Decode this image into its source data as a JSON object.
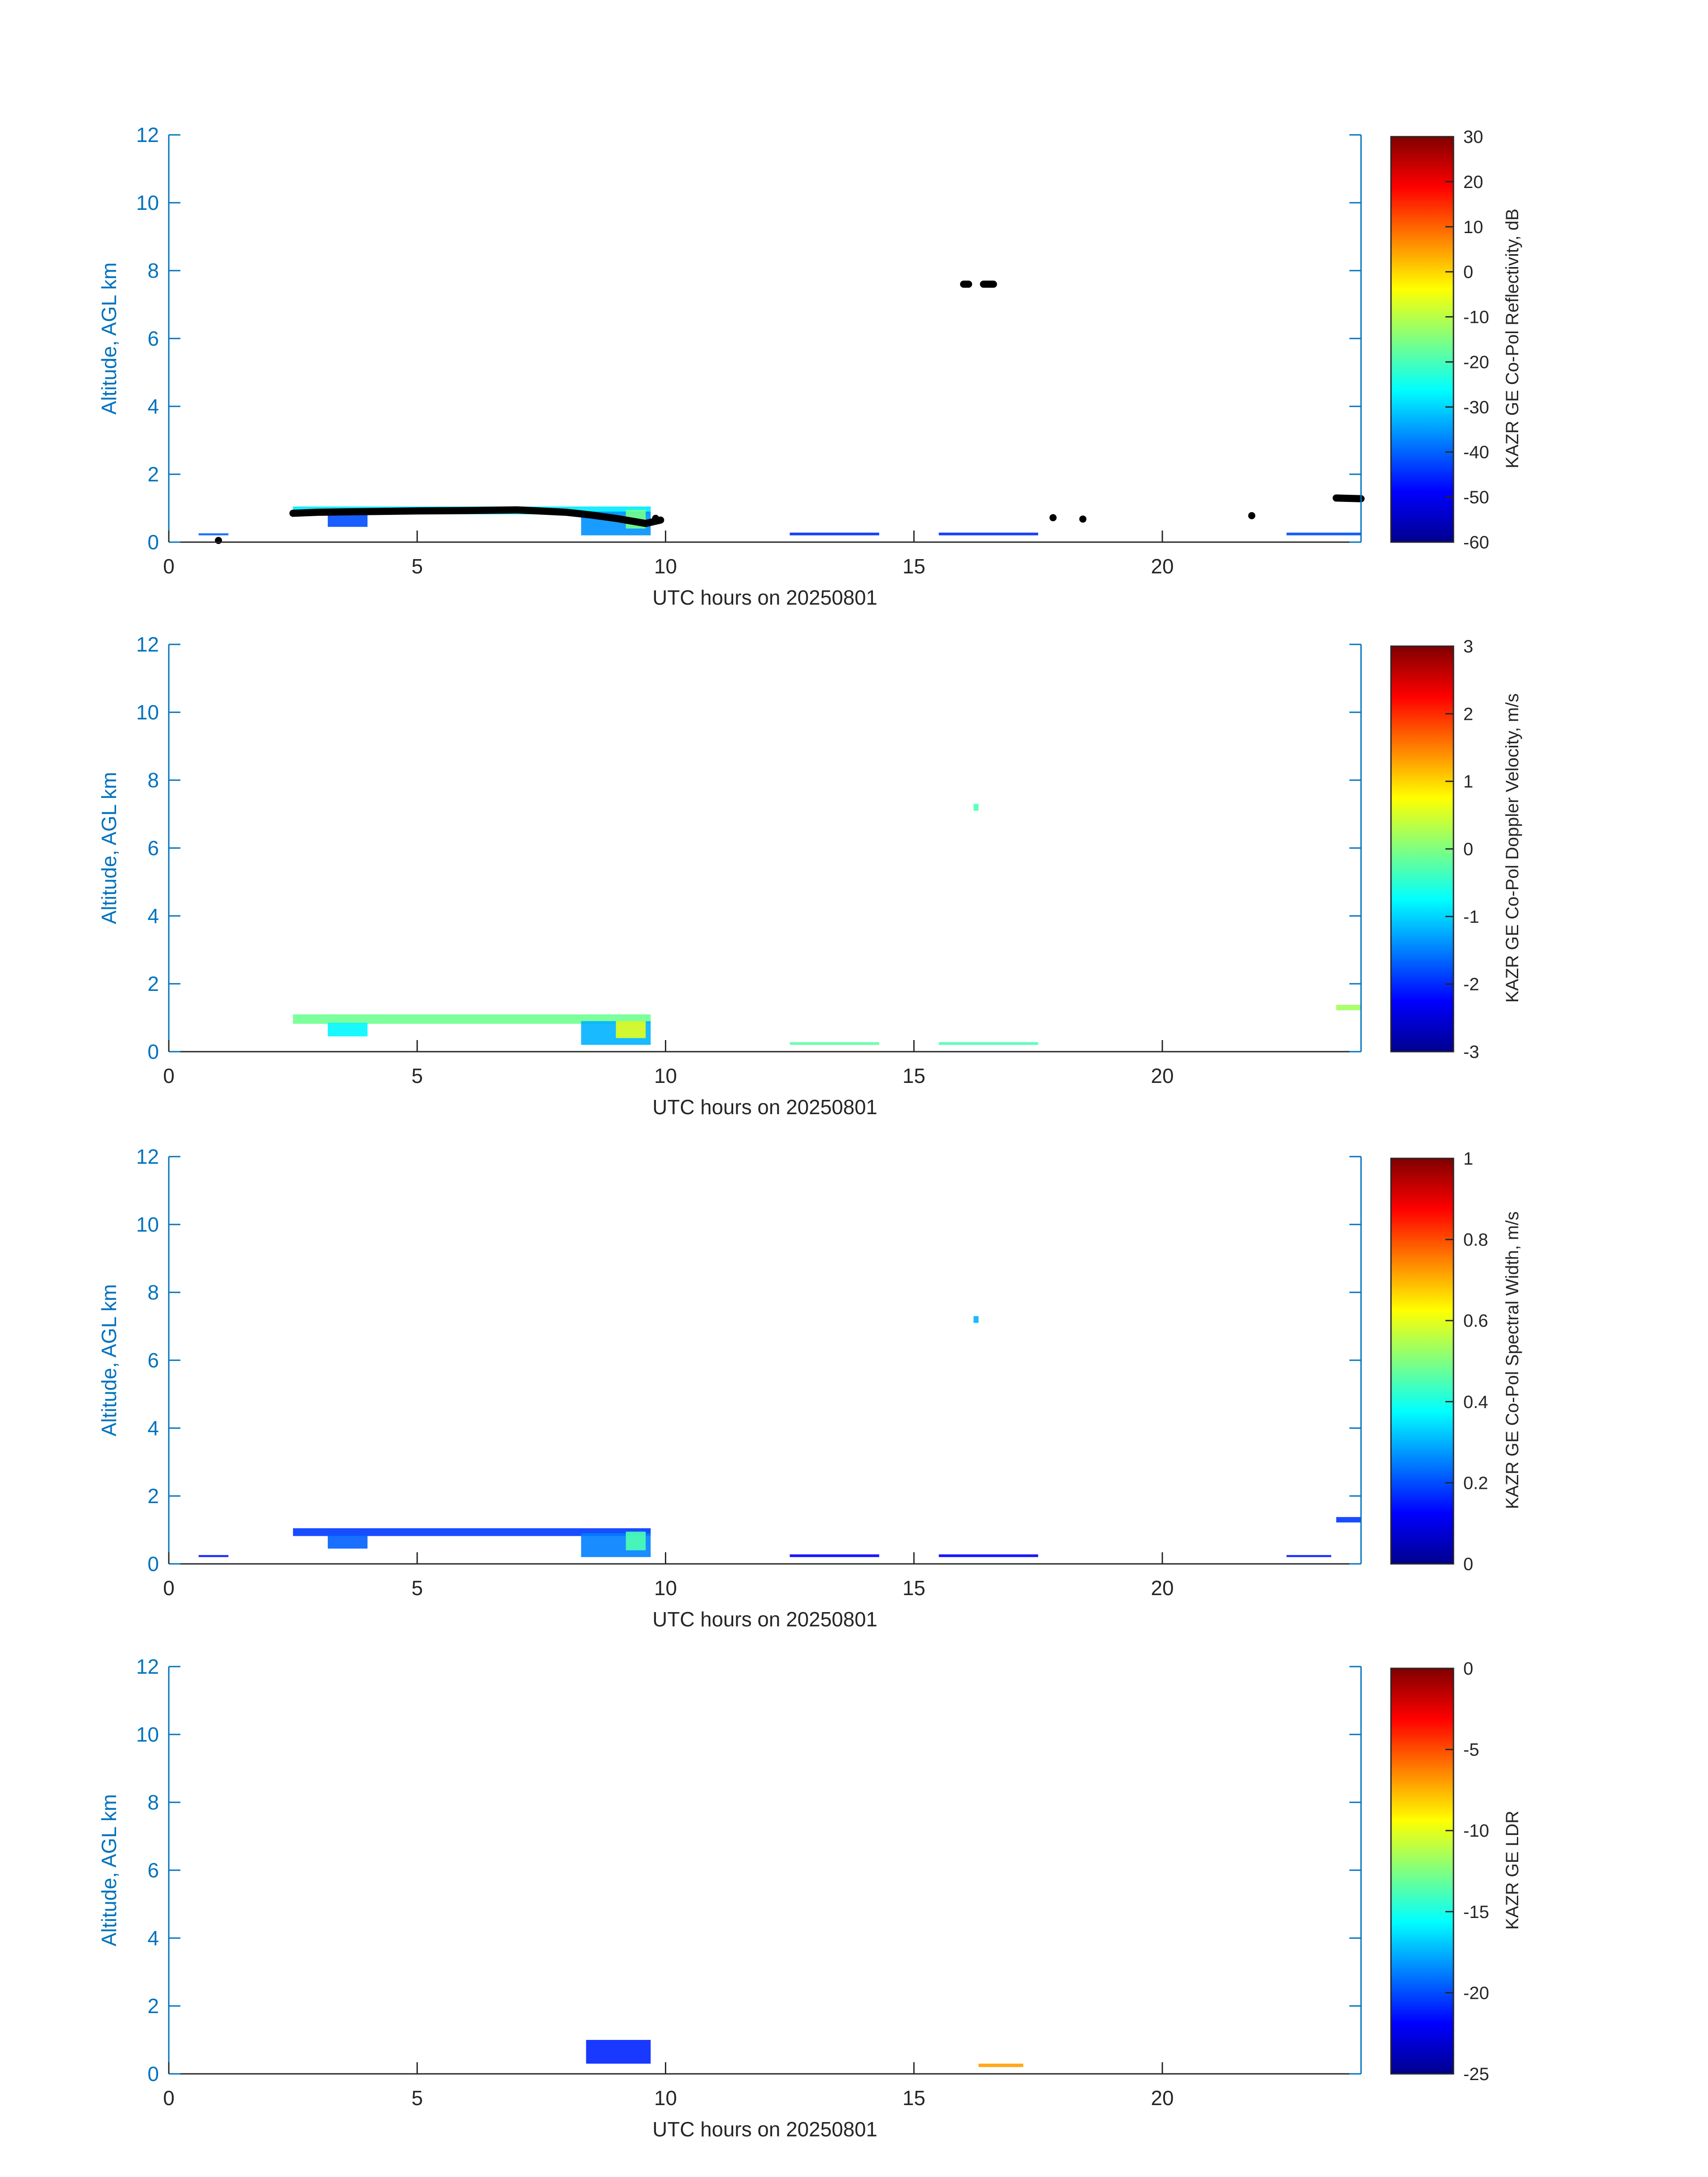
{
  "chart_data": [
    {
      "type": "heatmap",
      "xlabel": "UTC hours on 20250801",
      "ylabel": "Altitude, AGL km",
      "xlim": [
        0,
        24
      ],
      "ylim": [
        0,
        12
      ],
      "xticks": [
        0,
        5,
        10,
        15,
        20
      ],
      "yticks": [
        0,
        2,
        4,
        6,
        8,
        10,
        12
      ],
      "colorbar": {
        "label": "KAZR GE Co-Pol Reflectivity, dB",
        "range": [
          -60,
          30
        ],
        "ticks": [
          30,
          20,
          10,
          0,
          -10,
          -20,
          -30,
          -40,
          -50,
          -60
        ],
        "colormap": "jet"
      },
      "overlay": {
        "name": "cloud base",
        "color": "#000000",
        "segments": [
          [
            [
              2.5,
              0.85
            ],
            [
              3.0,
              0.88
            ],
            [
              4.0,
              0.9
            ],
            [
              5.0,
              0.92
            ],
            [
              6.0,
              0.93
            ],
            [
              7.0,
              0.95
            ],
            [
              8.0,
              0.88
            ],
            [
              8.5,
              0.8
            ],
            [
              9.0,
              0.7
            ],
            [
              9.4,
              0.6
            ],
            [
              9.6,
              0.55
            ],
            [
              9.9,
              0.65
            ]
          ],
          [
            [
              16.0,
              7.6
            ],
            [
              16.1,
              7.6
            ]
          ],
          [
            [
              16.4,
              7.6
            ],
            [
              16.6,
              7.6
            ]
          ],
          [
            [
              23.5,
              1.3
            ],
            [
              24.0,
              1.28
            ]
          ]
        ],
        "points": [
          [
            1.0,
            0.05
          ],
          [
            17.8,
            0.72
          ],
          [
            18.4,
            0.68
          ],
          [
            21.8,
            0.78
          ],
          [
            9.8,
            0.7
          ]
        ]
      },
      "echoes": [
        {
          "x0": 2.5,
          "x1": 9.7,
          "y0": 0.82,
          "y1": 1.05,
          "v": -28
        },
        {
          "x0": 3.2,
          "x1": 4.0,
          "y0": 0.45,
          "y1": 0.85,
          "v": -42
        },
        {
          "x0": 8.3,
          "x1": 9.7,
          "y0": 0.2,
          "y1": 0.9,
          "v": -36
        },
        {
          "x0": 9.2,
          "x1": 9.6,
          "y0": 0.4,
          "y1": 0.95,
          "v": -16
        },
        {
          "x0": 0.6,
          "x1": 1.2,
          "y0": 0.2,
          "y1": 0.26,
          "v": -40
        },
        {
          "x0": 12.5,
          "x1": 14.3,
          "y0": 0.2,
          "y1": 0.28,
          "v": -45
        },
        {
          "x0": 15.5,
          "x1": 17.5,
          "y0": 0.2,
          "y1": 0.28,
          "v": -45
        },
        {
          "x0": 22.5,
          "x1": 24.0,
          "y0": 0.2,
          "y1": 0.28,
          "v": -42
        }
      ]
    },
    {
      "type": "heatmap",
      "xlabel": "UTC hours on 20250801",
      "ylabel": "Altitude, AGL km",
      "xlim": [
        0,
        24
      ],
      "ylim": [
        0,
        12
      ],
      "xticks": [
        0,
        5,
        10,
        15,
        20
      ],
      "yticks": [
        0,
        2,
        4,
        6,
        8,
        10,
        12
      ],
      "colorbar": {
        "label": "KAZR GE Co-Pol Doppler Velocity, m/s",
        "range": [
          -3,
          3
        ],
        "ticks": [
          3,
          2,
          1,
          0,
          -1,
          -2,
          -3
        ],
        "colormap": "jet"
      },
      "echoes": [
        {
          "x0": 2.5,
          "x1": 9.7,
          "y0": 0.82,
          "y1": 1.1,
          "v": -0.1
        },
        {
          "x0": 3.2,
          "x1": 4.0,
          "y0": 0.45,
          "y1": 0.85,
          "v": -0.8
        },
        {
          "x0": 8.3,
          "x1": 9.7,
          "y0": 0.2,
          "y1": 0.9,
          "v": -1.2
        },
        {
          "x0": 9.0,
          "x1": 9.6,
          "y0": 0.4,
          "y1": 0.9,
          "v": 0.6
        },
        {
          "x0": 12.5,
          "x1": 14.3,
          "y0": 0.2,
          "y1": 0.28,
          "v": -0.2
        },
        {
          "x0": 15.5,
          "x1": 17.5,
          "y0": 0.2,
          "y1": 0.28,
          "v": -0.3
        },
        {
          "x0": 23.5,
          "x1": 24.0,
          "y0": 1.22,
          "y1": 1.38,
          "v": 0.2
        },
        {
          "x0": 16.2,
          "x1": 16.3,
          "y0": 7.1,
          "y1": 7.3,
          "v": -0.3
        }
      ]
    },
    {
      "type": "heatmap",
      "xlabel": "UTC hours on 20250801",
      "ylabel": "Altitude, AGL km",
      "xlim": [
        0,
        24
      ],
      "ylim": [
        0,
        12
      ],
      "xticks": [
        0,
        5,
        10,
        15,
        20
      ],
      "yticks": [
        0,
        2,
        4,
        6,
        8,
        10,
        12
      ],
      "colorbar": {
        "label": "KAZR GE Co-Pol Spectral Width, m/s",
        "range": [
          0,
          1
        ],
        "ticks": [
          1,
          0.8,
          0.6,
          0.4,
          0.2,
          0
        ],
        "colormap": "jet"
      },
      "echoes": [
        {
          "x0": 2.5,
          "x1": 9.7,
          "y0": 0.82,
          "y1": 1.05,
          "v": 0.18
        },
        {
          "x0": 3.2,
          "x1": 4.0,
          "y0": 0.45,
          "y1": 0.85,
          "v": 0.22
        },
        {
          "x0": 8.3,
          "x1": 9.7,
          "y0": 0.2,
          "y1": 0.9,
          "v": 0.25
        },
        {
          "x0": 9.2,
          "x1": 9.6,
          "y0": 0.4,
          "y1": 0.95,
          "v": 0.45
        },
        {
          "x0": 0.6,
          "x1": 1.2,
          "y0": 0.2,
          "y1": 0.26,
          "v": 0.15
        },
        {
          "x0": 12.5,
          "x1": 14.3,
          "y0": 0.2,
          "y1": 0.28,
          "v": 0.12
        },
        {
          "x0": 15.5,
          "x1": 17.5,
          "y0": 0.2,
          "y1": 0.28,
          "v": 0.12
        },
        {
          "x0": 22.5,
          "x1": 23.4,
          "y0": 0.2,
          "y1": 0.26,
          "v": 0.15
        },
        {
          "x0": 23.5,
          "x1": 24.0,
          "y0": 1.22,
          "y1": 1.38,
          "v": 0.18
        },
        {
          "x0": 16.2,
          "x1": 16.3,
          "y0": 7.1,
          "y1": 7.3,
          "v": 0.3
        }
      ]
    },
    {
      "type": "heatmap",
      "xlabel": "UTC hours on 20250801",
      "ylabel": "Altitude, AGL km",
      "xlim": [
        0,
        24
      ],
      "ylim": [
        0,
        12
      ],
      "xticks": [
        0,
        5,
        10,
        15,
        20
      ],
      "yticks": [
        0,
        2,
        4,
        6,
        8,
        10,
        12
      ],
      "colorbar": {
        "label": "KAZR GE LDR",
        "range": [
          -25,
          0
        ],
        "ticks": [
          0,
          -5,
          -10,
          -15,
          -20,
          -25
        ],
        "colormap": "jet"
      },
      "echoes": [
        {
          "x0": 8.4,
          "x1": 9.7,
          "y0": 0.3,
          "y1": 1.0,
          "v": -21
        },
        {
          "x0": 16.3,
          "x1": 17.2,
          "y0": 0.2,
          "y1": 0.3,
          "v": -7
        }
      ]
    }
  ]
}
